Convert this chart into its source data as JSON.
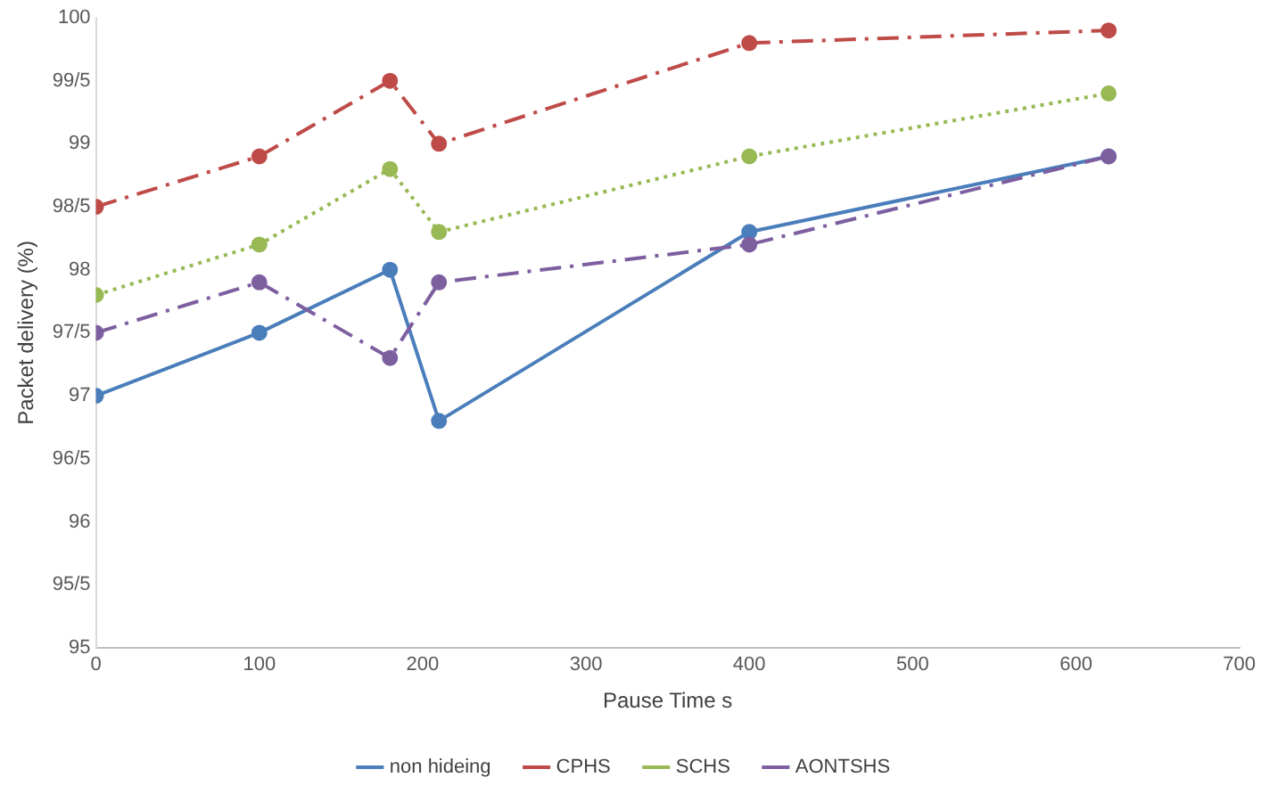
{
  "chart_data": {
    "type": "line",
    "xlabel": "Pause Time s",
    "ylabel": "Packet delivery (%)",
    "x": [
      0,
      100,
      180,
      210,
      400,
      620
    ],
    "series": [
      {
        "name": "non hideing",
        "color": "#4a7ebb",
        "line_style": "solid",
        "values": [
          97,
          97.5,
          98,
          96.8,
          98.3,
          98.9
        ]
      },
      {
        "name": "CPHS",
        "color": "#be4b48",
        "line_style": "dashed",
        "values": [
          98.5,
          98.9,
          99.5,
          99.0,
          99.8,
          99.9
        ]
      },
      {
        "name": "SCHS",
        "color": "#98b954",
        "line_style": "dotted",
        "values": [
          97.8,
          98.2,
          98.8,
          98.3,
          98.9,
          99.4
        ]
      },
      {
        "name": "AONTSHS",
        "color": "#7d5fa0",
        "line_style": "dashed",
        "values": [
          97.5,
          97.9,
          97.3,
          97.9,
          98.2,
          98.9
        ]
      }
    ],
    "xlim": [
      0,
      700
    ],
    "xticks": [
      0,
      100,
      200,
      300,
      400,
      500,
      600,
      700
    ],
    "ylim": [
      95,
      100
    ],
    "yticks": [
      95,
      {
        "value": 95.5,
        "label": "95/5"
      },
      96,
      {
        "value": 96.5,
        "label": "96/5"
      },
      97,
      {
        "value": 97.5,
        "label": "97/5"
      },
      98,
      {
        "value": 98.5,
        "label": "98/5"
      },
      99,
      {
        "value": 99.5,
        "label": "99/5"
      },
      100
    ],
    "grid": false,
    "legend": "bottom",
    "marker": "circle"
  }
}
